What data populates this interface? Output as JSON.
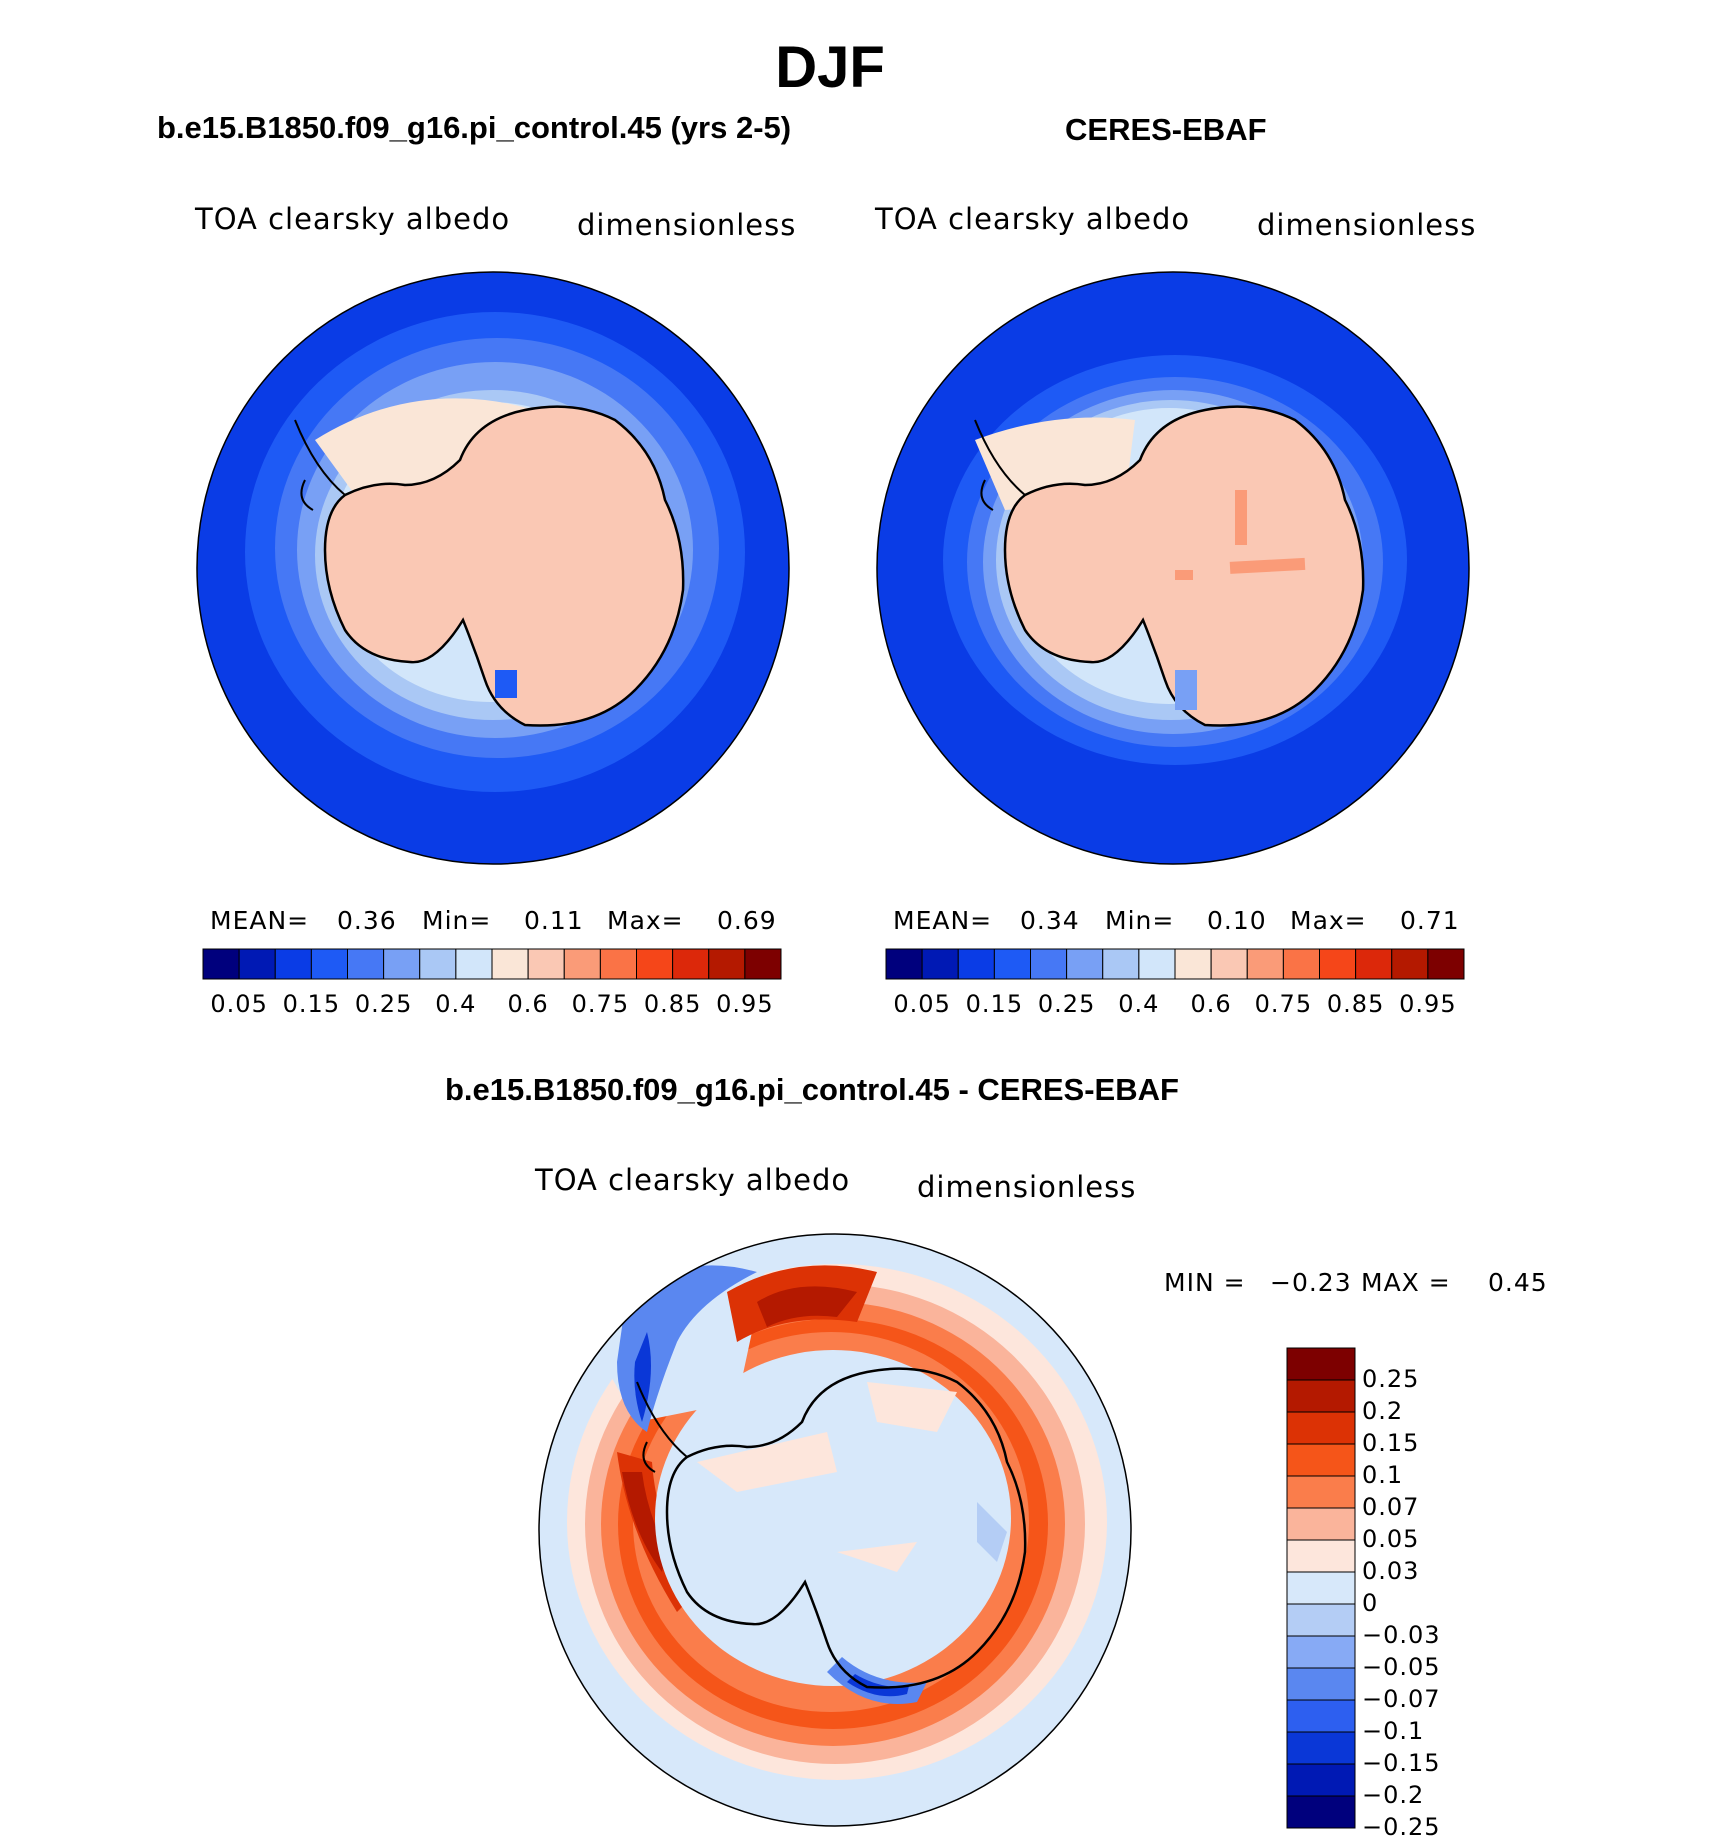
{
  "title": "DJF",
  "panels": [
    {
      "id": "model",
      "title": "b.e15.B1850.f09_g16.pi_control.45 (yrs 2-5)",
      "left_label": "TOA clearsky albedo",
      "right_label": "dimensionless",
      "mean_label": "MEAN=",
      "mean_value": "0.36",
      "min_label": "Min=",
      "min_value": "0.11",
      "max_label": "Max=",
      "max_value": "0.69"
    },
    {
      "id": "obs",
      "title": "CERES-EBAF",
      "left_label": "TOA clearsky albedo",
      "right_label": "dimensionless",
      "mean_label": "MEAN=",
      "mean_value": "0.34",
      "min_label": "Min=",
      "min_value": "0.10",
      "max_label": "Max=",
      "max_value": "0.71"
    }
  ],
  "abs_colorbar": {
    "colors": [
      "#00007d",
      "#0019b4",
      "#0a3ce6",
      "#1e5af5",
      "#4678f5",
      "#78a0f5",
      "#aac8f5",
      "#d2e6fa",
      "#fae6d7",
      "#fac8b4",
      "#fa9b78",
      "#fa7346",
      "#f54619",
      "#dc280a",
      "#b41900",
      "#7d0000"
    ],
    "tick_labels": [
      "0.05",
      "0.15",
      "0.25",
      "0.4",
      "0.6",
      "0.75",
      "0.85",
      "0.95"
    ]
  },
  "diff_panel": {
    "title": "b.e15.B1850.f09_g16.pi_control.45 - CERES-EBAF",
    "left_label": "TOA clearsky albedo",
    "right_label": "dimensionless",
    "min_label": "MIN =",
    "min_value": "−0.23",
    "max_label": "MAX =",
    "max_value": "0.45",
    "colorbar": {
      "colors": [
        "#7d0000",
        "#b41900",
        "#dc3205",
        "#f55519",
        "#fa7d4b",
        "#fab49b",
        "#fde6dc",
        "#d7e8fa",
        "#b4cdf5",
        "#87aaf5",
        "#5a87f0",
        "#2d5ff0",
        "#0a37d7",
        "#0019b4",
        "#00007d"
      ],
      "tick_labels": [
        "0.25",
        "0.2",
        "0.15",
        "0.1",
        "0.07",
        "0.05",
        "0.03",
        "0",
        "−0.03",
        "−0.05",
        "−0.07",
        "−0.1",
        "−0.15",
        "−0.2",
        "−0.25"
      ]
    }
  },
  "map_colors": {
    "deep_ocean": "#0a3ce6",
    "ocean2": "#1e5af5",
    "ocean3": "#4678f5",
    "ocean4": "#78a0f5",
    "ocean5": "#aac8f5",
    "ocean6": "#d2e6fa",
    "land": "#fac8b4",
    "land_light": "#fae6d7",
    "land_spot": "#fa9b78",
    "diff_base": "#d7e8fa",
    "diff_warm1": "#fde6dc",
    "diff_warm2": "#fab49b",
    "diff_warm3": "#fa7d4b",
    "diff_warm4": "#f55519",
    "diff_warm5": "#dc3205",
    "diff_warm6": "#b41900",
    "diff_cool1": "#b4cdf5",
    "diff_cool2": "#5a87f0",
    "diff_cool3": "#0a37d7"
  }
}
